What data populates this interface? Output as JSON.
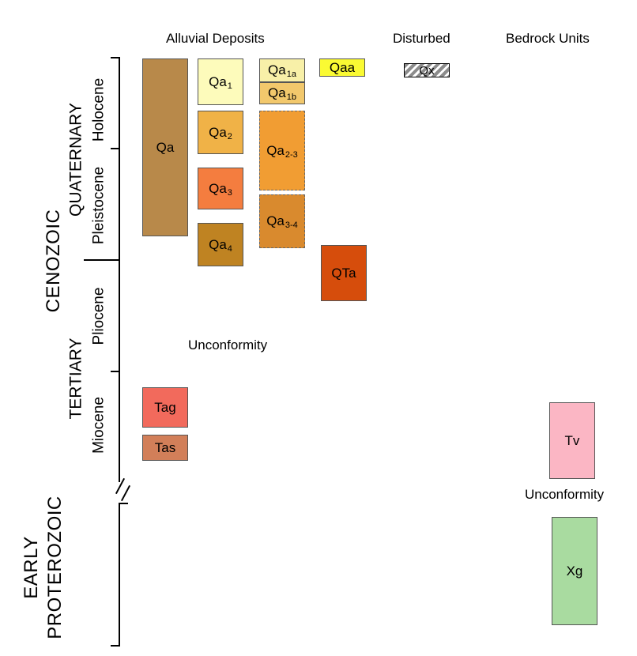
{
  "headers": {
    "alluvial": "Alluvial Deposits",
    "disturbed": "Disturbed",
    "bedrock": "Bedrock Units"
  },
  "eras": {
    "cenozoic": "CENOZOIC",
    "early_proterozoic_1": "EARLY",
    "early_proterozoic_2": "PROTEROZOIC"
  },
  "periods": {
    "quaternary": "QUATERNARY",
    "tertiary": "TERTIARY"
  },
  "epochs": {
    "holocene": "Holocene",
    "pleistocene": "Pleistocene",
    "pliocene": "Pliocene",
    "miocene": "Miocene"
  },
  "units": {
    "qa": {
      "base": "Qa",
      "sub": ""
    },
    "qa1": {
      "base": "Qa",
      "sub": "1"
    },
    "qa2": {
      "base": "Qa",
      "sub": "2"
    },
    "qa3": {
      "base": "Qa",
      "sub": "3"
    },
    "qa4": {
      "base": "Qa",
      "sub": "4"
    },
    "qa1a": {
      "base": "Qa",
      "sub": "1a"
    },
    "qa1b": {
      "base": "Qa",
      "sub": "1b"
    },
    "qa23": {
      "base": "Qa",
      "sub": "2-3"
    },
    "qa34": {
      "base": "Qa",
      "sub": "3-4"
    },
    "qaa": {
      "base": "Qaa",
      "sub": ""
    },
    "qx": {
      "base": "Qx",
      "sub": ""
    },
    "qta": {
      "base": "QTa",
      "sub": ""
    },
    "tag": {
      "base": "Tag",
      "sub": ""
    },
    "tas": {
      "base": "Tas",
      "sub": ""
    },
    "tv": {
      "base": "Tv",
      "sub": ""
    },
    "xg": {
      "base": "Xg",
      "sub": ""
    }
  },
  "labels": {
    "unconformity_alluvial": "Unconformity",
    "unconformity_bedrock": "Unconformity"
  },
  "colors": {
    "qa": "#b8894a",
    "qa1": "#fdfbbb",
    "qa2": "#f0b247",
    "qa3": "#f47d3f",
    "qa4": "#bf8322",
    "qa1a": "#f8f0a8",
    "qa1b": "#f2c86c",
    "qa23": "#f19d33",
    "qa34": "#d98a2e",
    "qaa": "#fafa33",
    "qta": "#d64d0c",
    "tag": "#f26a5c",
    "tas": "#d27f59",
    "tv": "#fbb6c4",
    "xg": "#a9dba0"
  }
}
